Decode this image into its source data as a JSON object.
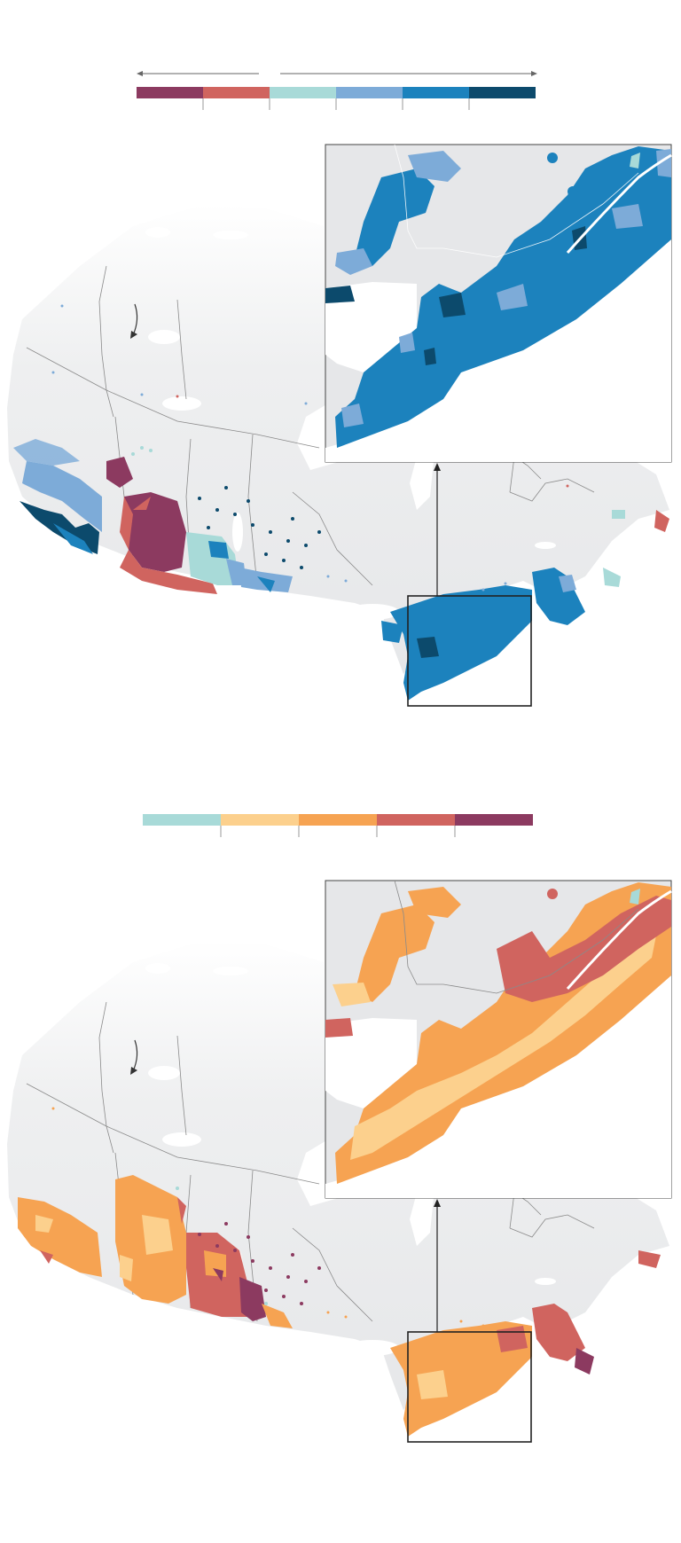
{
  "colors": {
    "background": "#ffffff",
    "land": "#e6e7e9",
    "land_light": "#f1f2f3",
    "water": "#ffffff",
    "border": "#8a8a8a",
    "inset_frame": "#444444",
    "arrow": "#555555"
  },
  "map_top": {
    "legend_colors": [
      "#8c3a60",
      "#d0645f",
      "#a8dad8",
      "#7dabd8",
      "#1c82bd",
      "#0c4a6c"
    ],
    "icons": [
      "arrow-left-icon",
      "arrow-right-icon",
      "curved-arrow-icon",
      "arrow-up-icon"
    ]
  },
  "map_bottom": {
    "legend_colors": [
      "#a8dad8",
      "#fcd08d",
      "#f6a352",
      "#d0645f",
      "#8c3a60"
    ],
    "icons": [
      "curved-arrow-icon",
      "arrow-up-icon"
    ]
  }
}
